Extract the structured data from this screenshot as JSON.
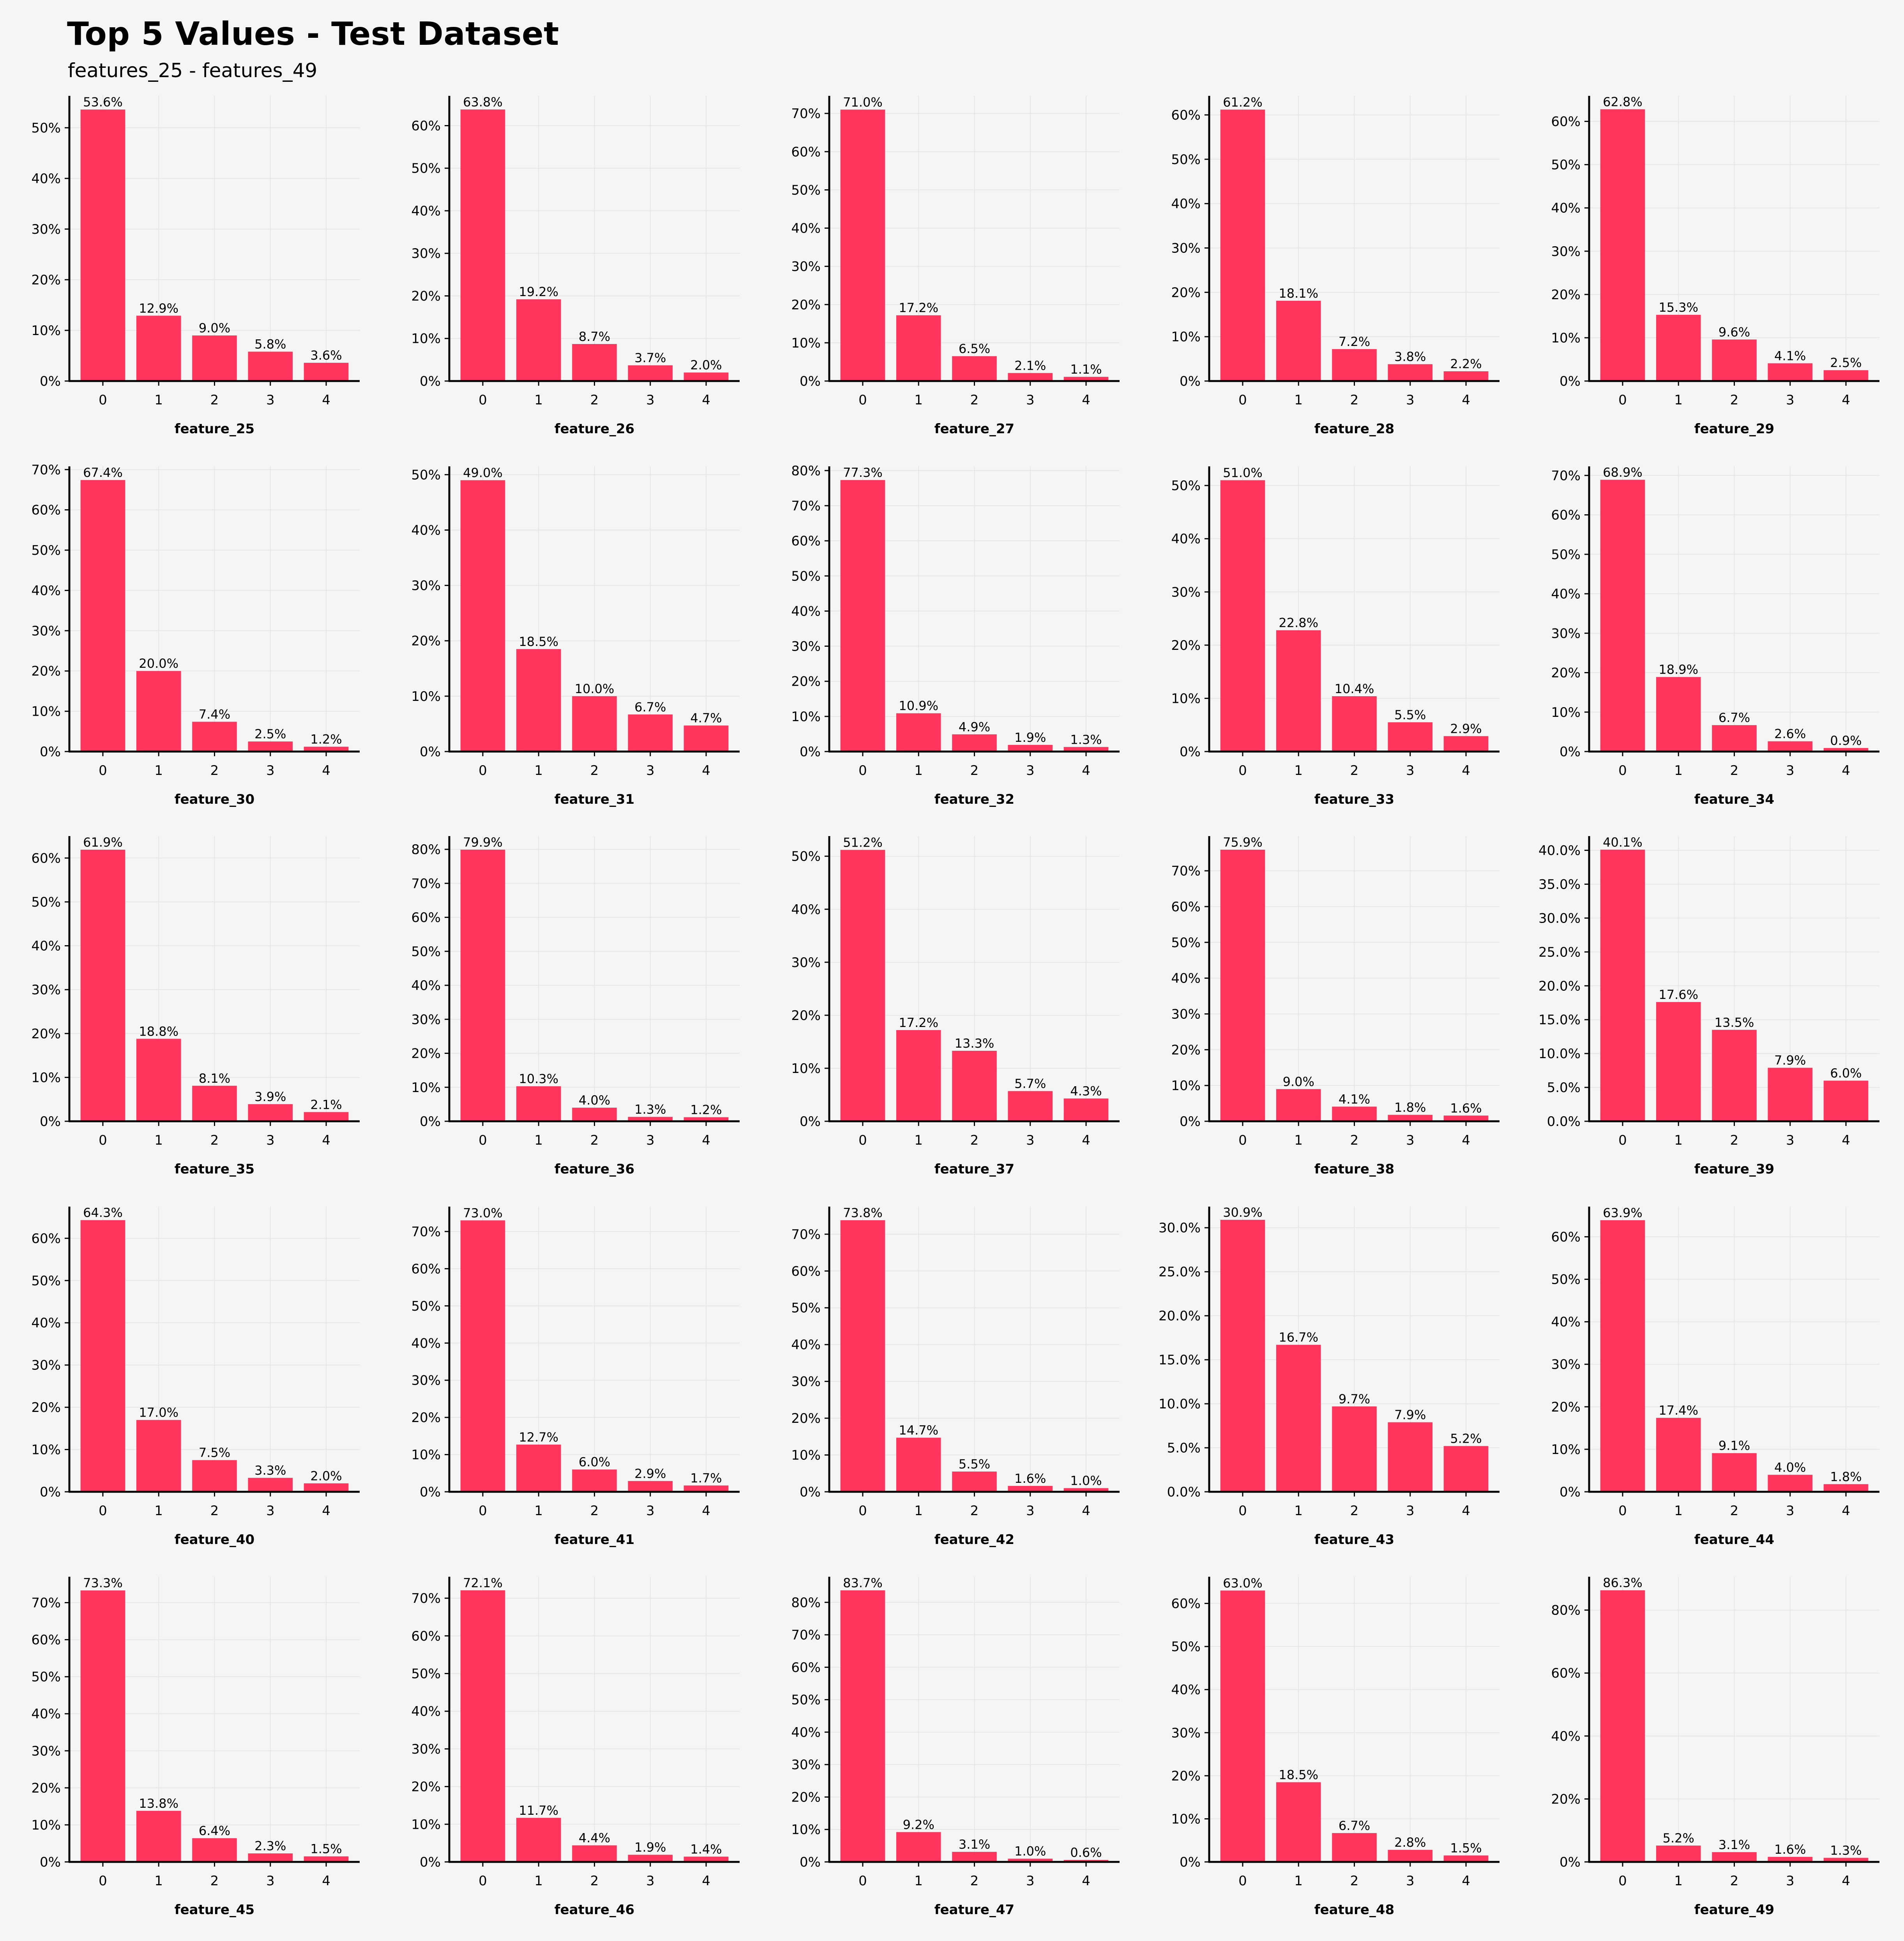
{
  "title": "Top 5 Values - Test Dataset",
  "subtitle": "features_25 - features_49",
  "colors": {
    "bar": "#ff355e",
    "background": "#f5f5f5",
    "axis": "#000000",
    "grid": "#e6e6e6"
  },
  "chart_data": [
    {
      "type": "bar",
      "xlabel": "feature_25",
      "categories": [
        "0",
        "1",
        "2",
        "3",
        "4"
      ],
      "values": [
        53.6,
        12.9,
        9.0,
        5.8,
        3.6
      ],
      "data_labels": [
        "53.6%",
        "12.9%",
        "9.0%",
        "5.8%",
        "3.6%"
      ],
      "yticks": [
        "0%",
        "10%",
        "20%",
        "30%",
        "40%",
        "50%"
      ],
      "ylim": [
        0,
        56.3
      ]
    },
    {
      "type": "bar",
      "xlabel": "feature_26",
      "categories": [
        "0",
        "1",
        "2",
        "3",
        "4"
      ],
      "values": [
        63.8,
        19.2,
        8.7,
        3.7,
        2.0
      ],
      "data_labels": [
        "63.8%",
        "19.2%",
        "8.7%",
        "3.7%",
        "2.0%"
      ],
      "yticks": [
        "0%",
        "10%",
        "20%",
        "30%",
        "40%",
        "50%",
        "60%"
      ],
      "ylim": [
        0,
        67.0
      ]
    },
    {
      "type": "bar",
      "xlabel": "feature_27",
      "categories": [
        "0",
        "1",
        "2",
        "3",
        "4"
      ],
      "values": [
        71.0,
        17.2,
        6.5,
        2.1,
        1.1
      ],
      "data_labels": [
        "71.0%",
        "17.2%",
        "6.5%",
        "2.1%",
        "1.1%"
      ],
      "yticks": [
        "0%",
        "10%",
        "20%",
        "30%",
        "40%",
        "50%",
        "60%",
        "70%"
      ],
      "ylim": [
        0,
        74.6
      ]
    },
    {
      "type": "bar",
      "xlabel": "feature_28",
      "categories": [
        "0",
        "1",
        "2",
        "3",
        "4"
      ],
      "values": [
        61.2,
        18.1,
        7.2,
        3.8,
        2.2
      ],
      "data_labels": [
        "61.2%",
        "18.1%",
        "7.2%",
        "3.8%",
        "2.2%"
      ],
      "yticks": [
        "0%",
        "10%",
        "20%",
        "30%",
        "40%",
        "50%",
        "60%"
      ],
      "ylim": [
        0,
        64.3
      ]
    },
    {
      "type": "bar",
      "xlabel": "feature_29",
      "categories": [
        "0",
        "1",
        "2",
        "3",
        "4"
      ],
      "values": [
        62.8,
        15.3,
        9.6,
        4.1,
        2.5
      ],
      "data_labels": [
        "62.8%",
        "15.3%",
        "9.6%",
        "4.1%",
        "2.5%"
      ],
      "yticks": [
        "0%",
        "10%",
        "20%",
        "30%",
        "40%",
        "50%",
        "60%"
      ],
      "ylim": [
        0,
        65.9
      ]
    },
    {
      "type": "bar",
      "xlabel": "feature_30",
      "categories": [
        "0",
        "1",
        "2",
        "3",
        "4"
      ],
      "values": [
        67.4,
        20.0,
        7.4,
        2.5,
        1.2
      ],
      "data_labels": [
        "67.4%",
        "20.0%",
        "7.4%",
        "2.5%",
        "1.2%"
      ],
      "yticks": [
        "0%",
        "10%",
        "20%",
        "30%",
        "40%",
        "50%",
        "60%",
        "70%"
      ],
      "ylim": [
        0,
        70.8
      ]
    },
    {
      "type": "bar",
      "xlabel": "feature_31",
      "categories": [
        "0",
        "1",
        "2",
        "3",
        "4"
      ],
      "values": [
        49.0,
        18.5,
        10.0,
        6.7,
        4.7
      ],
      "data_labels": [
        "49.0%",
        "18.5%",
        "10.0%",
        "6.7%",
        "4.7%"
      ],
      "yticks": [
        "0%",
        "10%",
        "20%",
        "30%",
        "40%",
        "50%"
      ],
      "ylim": [
        0,
        51.5
      ]
    },
    {
      "type": "bar",
      "xlabel": "feature_32",
      "categories": [
        "0",
        "1",
        "2",
        "3",
        "4"
      ],
      "values": [
        77.3,
        10.9,
        4.9,
        1.9,
        1.3
      ],
      "data_labels": [
        "77.3%",
        "10.9%",
        "4.9%",
        "1.9%",
        "1.3%"
      ],
      "yticks": [
        "0%",
        "10%",
        "20%",
        "30%",
        "40%",
        "50%",
        "60%",
        "70%",
        "80%"
      ],
      "ylim": [
        0,
        81.2
      ]
    },
    {
      "type": "bar",
      "xlabel": "feature_33",
      "categories": [
        "0",
        "1",
        "2",
        "3",
        "4"
      ],
      "values": [
        51.0,
        22.8,
        10.4,
        5.5,
        2.9
      ],
      "data_labels": [
        "51.0%",
        "22.8%",
        "10.4%",
        "5.5%",
        "2.9%"
      ],
      "yticks": [
        "0%",
        "10%",
        "20%",
        "30%",
        "40%",
        "50%"
      ],
      "ylim": [
        0,
        53.6
      ]
    },
    {
      "type": "bar",
      "xlabel": "feature_34",
      "categories": [
        "0",
        "1",
        "2",
        "3",
        "4"
      ],
      "values": [
        68.9,
        18.9,
        6.7,
        2.6,
        0.9
      ],
      "data_labels": [
        "68.9%",
        "18.9%",
        "6.7%",
        "2.6%",
        "0.9%"
      ],
      "yticks": [
        "0%",
        "10%",
        "20%",
        "30%",
        "40%",
        "50%",
        "60%",
        "70%"
      ],
      "ylim": [
        0,
        72.3
      ]
    },
    {
      "type": "bar",
      "xlabel": "feature_35",
      "categories": [
        "0",
        "1",
        "2",
        "3",
        "4"
      ],
      "values": [
        61.9,
        18.8,
        8.1,
        3.9,
        2.1
      ],
      "data_labels": [
        "61.9%",
        "18.8%",
        "8.1%",
        "3.9%",
        "2.1%"
      ],
      "yticks": [
        "0%",
        "10%",
        "20%",
        "30%",
        "40%",
        "50%",
        "60%"
      ],
      "ylim": [
        0,
        65.0
      ]
    },
    {
      "type": "bar",
      "xlabel": "feature_36",
      "categories": [
        "0",
        "1",
        "2",
        "3",
        "4"
      ],
      "values": [
        79.9,
        10.3,
        4.0,
        1.3,
        1.2
      ],
      "data_labels": [
        "79.9%",
        "10.3%",
        "4.0%",
        "1.3%",
        "1.2%"
      ],
      "yticks": [
        "0%",
        "10%",
        "20%",
        "30%",
        "40%",
        "50%",
        "60%",
        "70%",
        "80%"
      ],
      "ylim": [
        0,
        83.9
      ]
    },
    {
      "type": "bar",
      "xlabel": "feature_37",
      "categories": [
        "0",
        "1",
        "2",
        "3",
        "4"
      ],
      "values": [
        51.2,
        17.2,
        13.3,
        5.7,
        4.3
      ],
      "data_labels": [
        "51.2%",
        "17.2%",
        "13.3%",
        "5.7%",
        "4.3%"
      ],
      "yticks": [
        "0%",
        "10%",
        "20%",
        "30%",
        "40%",
        "50%"
      ],
      "ylim": [
        0,
        53.8
      ]
    },
    {
      "type": "bar",
      "xlabel": "feature_38",
      "categories": [
        "0",
        "1",
        "2",
        "3",
        "4"
      ],
      "values": [
        75.9,
        9.0,
        4.1,
        1.8,
        1.6
      ],
      "data_labels": [
        "75.9%",
        "9.0%",
        "4.1%",
        "1.8%",
        "1.6%"
      ],
      "yticks": [
        "0%",
        "10%",
        "20%",
        "30%",
        "40%",
        "50%",
        "60%",
        "70%"
      ],
      "ylim": [
        0,
        79.7
      ]
    },
    {
      "type": "bar",
      "xlabel": "feature_39",
      "categories": [
        "0",
        "1",
        "2",
        "3",
        "4"
      ],
      "values": [
        40.1,
        17.6,
        13.5,
        7.9,
        6.0
      ],
      "data_labels": [
        "40.1%",
        "17.6%",
        "13.5%",
        "7.9%",
        "6.0%"
      ],
      "yticks": [
        "0.0%",
        "5.0%",
        "10.0%",
        "15.0%",
        "20.0%",
        "25.0%",
        "30.0%",
        "35.0%",
        "40.0%"
      ],
      "ylim": [
        0,
        42.1
      ]
    },
    {
      "type": "bar",
      "xlabel": "feature_40",
      "categories": [
        "0",
        "1",
        "2",
        "3",
        "4"
      ],
      "values": [
        64.3,
        17.0,
        7.5,
        3.3,
        2.0
      ],
      "data_labels": [
        "64.3%",
        "17.0%",
        "7.5%",
        "3.3%",
        "2.0%"
      ],
      "yticks": [
        "0%",
        "10%",
        "20%",
        "30%",
        "40%",
        "50%",
        "60%"
      ],
      "ylim": [
        0,
        67.5
      ]
    },
    {
      "type": "bar",
      "xlabel": "feature_41",
      "categories": [
        "0",
        "1",
        "2",
        "3",
        "4"
      ],
      "values": [
        73.0,
        12.7,
        6.0,
        2.9,
        1.7
      ],
      "data_labels": [
        "73.0%",
        "12.7%",
        "6.0%",
        "2.9%",
        "1.7%"
      ],
      "yticks": [
        "0%",
        "10%",
        "20%",
        "30%",
        "40%",
        "50%",
        "60%",
        "70%"
      ],
      "ylim": [
        0,
        76.7
      ]
    },
    {
      "type": "bar",
      "xlabel": "feature_42",
      "categories": [
        "0",
        "1",
        "2",
        "3",
        "4"
      ],
      "values": [
        73.8,
        14.7,
        5.5,
        1.6,
        1.0
      ],
      "data_labels": [
        "73.8%",
        "14.7%",
        "5.5%",
        "1.6%",
        "1.0%"
      ],
      "yticks": [
        "0%",
        "10%",
        "20%",
        "30%",
        "40%",
        "50%",
        "60%",
        "70%"
      ],
      "ylim": [
        0,
        77.5
      ]
    },
    {
      "type": "bar",
      "xlabel": "feature_43",
      "categories": [
        "0",
        "1",
        "2",
        "3",
        "4"
      ],
      "values": [
        30.9,
        16.7,
        9.7,
        7.9,
        5.2
      ],
      "data_labels": [
        "30.9%",
        "16.7%",
        "9.7%",
        "7.9%",
        "5.2%"
      ],
      "yticks": [
        "0.0%",
        "5.0%",
        "10.0%",
        "15.0%",
        "20.0%",
        "25.0%",
        "30.0%"
      ],
      "ylim": [
        0,
        32.4
      ]
    },
    {
      "type": "bar",
      "xlabel": "feature_44",
      "categories": [
        "0",
        "1",
        "2",
        "3",
        "4"
      ],
      "values": [
        63.9,
        17.4,
        9.1,
        4.0,
        1.8
      ],
      "data_labels": [
        "63.9%",
        "17.4%",
        "9.1%",
        "4.0%",
        "1.8%"
      ],
      "yticks": [
        "0%",
        "10%",
        "20%",
        "30%",
        "40%",
        "50%",
        "60%"
      ],
      "ylim": [
        0,
        67.1
      ]
    },
    {
      "type": "bar",
      "xlabel": "feature_45",
      "categories": [
        "0",
        "1",
        "2",
        "3",
        "4"
      ],
      "values": [
        73.3,
        13.8,
        6.4,
        2.3,
        1.5
      ],
      "data_labels": [
        "73.3%",
        "13.8%",
        "6.4%",
        "2.3%",
        "1.5%"
      ],
      "yticks": [
        "0%",
        "10%",
        "20%",
        "30%",
        "40%",
        "50%",
        "60%",
        "70%"
      ],
      "ylim": [
        0,
        77.0
      ]
    },
    {
      "type": "bar",
      "xlabel": "feature_46",
      "categories": [
        "0",
        "1",
        "2",
        "3",
        "4"
      ],
      "values": [
        72.1,
        11.7,
        4.4,
        1.9,
        1.4
      ],
      "data_labels": [
        "72.1%",
        "11.7%",
        "4.4%",
        "1.9%",
        "1.4%"
      ],
      "yticks": [
        "0%",
        "10%",
        "20%",
        "30%",
        "40%",
        "50%",
        "60%",
        "70%"
      ],
      "ylim": [
        0,
        75.7
      ]
    },
    {
      "type": "bar",
      "xlabel": "feature_47",
      "categories": [
        "0",
        "1",
        "2",
        "3",
        "4"
      ],
      "values": [
        83.7,
        9.2,
        3.1,
        1.0,
        0.6
      ],
      "data_labels": [
        "83.7%",
        "9.2%",
        "3.1%",
        "1.0%",
        "0.6%"
      ],
      "yticks": [
        "0%",
        "10%",
        "20%",
        "30%",
        "40%",
        "50%",
        "60%",
        "70%",
        "80%"
      ],
      "ylim": [
        0,
        87.9
      ]
    },
    {
      "type": "bar",
      "xlabel": "feature_48",
      "categories": [
        "0",
        "1",
        "2",
        "3",
        "4"
      ],
      "values": [
        63.0,
        18.5,
        6.7,
        2.8,
        1.5
      ],
      "data_labels": [
        "63.0%",
        "18.5%",
        "6.7%",
        "2.8%",
        "1.5%"
      ],
      "yticks": [
        "0%",
        "10%",
        "20%",
        "30%",
        "40%",
        "50%",
        "60%"
      ],
      "ylim": [
        0,
        66.2
      ]
    },
    {
      "type": "bar",
      "xlabel": "feature_49",
      "categories": [
        "0",
        "1",
        "2",
        "3",
        "4"
      ],
      "values": [
        86.3,
        5.2,
        3.1,
        1.6,
        1.3
      ],
      "data_labels": [
        "86.3%",
        "5.2%",
        "3.1%",
        "1.6%",
        "1.3%"
      ],
      "yticks": [
        "0%",
        "20%",
        "40%",
        "60%",
        "80%"
      ],
      "ylim": [
        0,
        90.6
      ]
    }
  ]
}
